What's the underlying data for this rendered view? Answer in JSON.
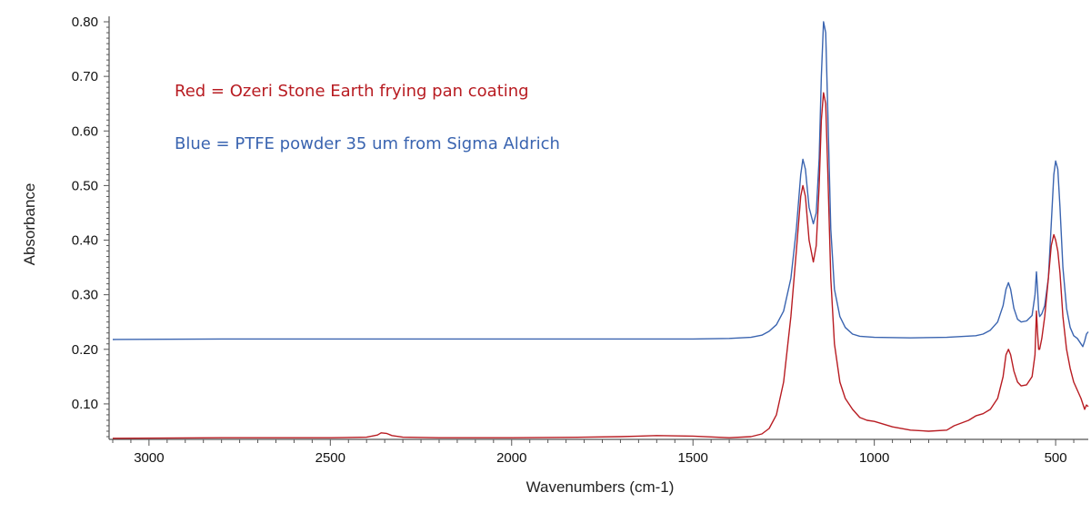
{
  "chart_data": {
    "type": "line",
    "xlabel": "Wavenumbers (cm-1)",
    "ylabel": "Absorbance",
    "x_reversed": true,
    "xlim": [
      3110,
      410
    ],
    "ylim": [
      0.035,
      0.81
    ],
    "x_ticks": [
      3000,
      2500,
      2000,
      1500,
      1000,
      500
    ],
    "y_ticks": [
      0.1,
      0.2,
      0.3,
      0.4,
      0.5,
      0.6,
      0.7,
      0.8
    ],
    "y_tick_labels": [
      "0.10",
      "0.20",
      "0.30",
      "0.40",
      "0.50",
      "0.60",
      "0.70",
      "0.80"
    ],
    "grid": false,
    "colors": {
      "red_series": "#b81c22",
      "blue_series": "#3a64b0",
      "axis": "#555555"
    },
    "annotations": [
      {
        "text": "Red = Ozeri Stone Earth frying pan coating",
        "color": "#b81c22"
      },
      {
        "text": "Blue = PTFE powder 35 um from Sigma Aldrich",
        "color": "#3a64b0"
      }
    ],
    "series": [
      {
        "color": "#3a64b0",
        "x": [
          3100,
          2800,
          2500,
          2200,
          2000,
          1700,
          1500,
          1400,
          1340,
          1310,
          1290,
          1270,
          1250,
          1230,
          1215,
          1203,
          1197,
          1190,
          1180,
          1168,
          1160,
          1152,
          1146,
          1140,
          1134,
          1128,
          1120,
          1110,
          1095,
          1080,
          1060,
          1040,
          1000,
          900,
          800,
          720,
          700,
          680,
          660,
          645,
          637,
          630,
          624,
          615,
          605,
          595,
          580,
          565,
          557,
          553,
          550,
          547,
          544,
          538,
          530,
          520,
          512,
          505,
          500,
          494,
          488,
          480,
          470,
          460,
          450,
          440,
          430,
          425,
          420,
          415,
          410
        ],
        "y": [
          0.218,
          0.219,
          0.219,
          0.219,
          0.219,
          0.219,
          0.219,
          0.22,
          0.222,
          0.226,
          0.233,
          0.245,
          0.27,
          0.33,
          0.42,
          0.52,
          0.548,
          0.53,
          0.46,
          0.43,
          0.45,
          0.55,
          0.7,
          0.8,
          0.78,
          0.63,
          0.42,
          0.31,
          0.26,
          0.24,
          0.228,
          0.224,
          0.222,
          0.221,
          0.222,
          0.225,
          0.228,
          0.235,
          0.25,
          0.28,
          0.31,
          0.322,
          0.31,
          0.275,
          0.255,
          0.25,
          0.252,
          0.262,
          0.3,
          0.342,
          0.31,
          0.272,
          0.26,
          0.265,
          0.28,
          0.33,
          0.43,
          0.52,
          0.545,
          0.53,
          0.46,
          0.35,
          0.275,
          0.24,
          0.225,
          0.22,
          0.21,
          0.205,
          0.215,
          0.228,
          0.232
        ]
      },
      {
        "color": "#b81c22",
        "x": [
          3100,
          2800,
          2500,
          2400,
          2370,
          2360,
          2345,
          2330,
          2300,
          2200,
          2150,
          2000,
          1800,
          1700,
          1650,
          1600,
          1500,
          1400,
          1340,
          1310,
          1290,
          1270,
          1250,
          1230,
          1215,
          1203,
          1197,
          1190,
          1180,
          1168,
          1160,
          1152,
          1146,
          1140,
          1134,
          1128,
          1120,
          1110,
          1095,
          1080,
          1060,
          1040,
          1020,
          1000,
          950,
          900,
          850,
          800,
          780,
          760,
          740,
          720,
          700,
          680,
          660,
          645,
          637,
          630,
          624,
          615,
          605,
          595,
          580,
          565,
          557,
          553,
          550,
          547,
          544,
          538,
          530,
          520,
          512,
          505,
          500,
          494,
          488,
          480,
          470,
          460,
          450,
          440,
          430,
          425,
          420,
          415,
          410
        ],
        "y": [
          0.037,
          0.038,
          0.038,
          0.039,
          0.043,
          0.047,
          0.046,
          0.042,
          0.039,
          0.038,
          0.038,
          0.038,
          0.039,
          0.04,
          0.041,
          0.042,
          0.041,
          0.038,
          0.04,
          0.045,
          0.055,
          0.08,
          0.14,
          0.26,
          0.38,
          0.48,
          0.5,
          0.48,
          0.4,
          0.36,
          0.39,
          0.5,
          0.62,
          0.67,
          0.65,
          0.52,
          0.33,
          0.21,
          0.14,
          0.11,
          0.09,
          0.075,
          0.07,
          0.068,
          0.058,
          0.052,
          0.05,
          0.052,
          0.06,
          0.065,
          0.07,
          0.078,
          0.082,
          0.09,
          0.11,
          0.15,
          0.19,
          0.2,
          0.19,
          0.16,
          0.14,
          0.133,
          0.135,
          0.15,
          0.19,
          0.27,
          0.23,
          0.2,
          0.2,
          0.22,
          0.26,
          0.33,
          0.39,
          0.41,
          0.4,
          0.38,
          0.34,
          0.26,
          0.2,
          0.165,
          0.14,
          0.125,
          0.11,
          0.1,
          0.09,
          0.098,
          0.095
        ]
      }
    ]
  }
}
